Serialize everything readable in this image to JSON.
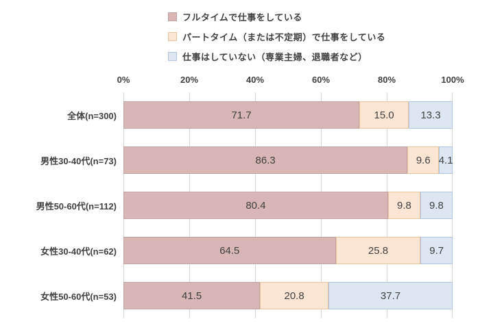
{
  "chart_data": {
    "type": "bar",
    "orientation": "horizontal",
    "stacked": true,
    "value_unit": "%",
    "value_decimals": 1,
    "title": "",
    "categories": [
      "全体(n=300)",
      "男性30-40代(n=73)",
      "男性50-60代(n=112)",
      "女性30-40代(n=62)",
      "女性50-60代(n=53)"
    ],
    "series": [
      {
        "name": "フルタイムで仕事をしている",
        "values": [
          71.7,
          86.3,
          80.4,
          64.5,
          41.5
        ],
        "fill": "#d8b6b5",
        "border": "#bfa2a1"
      },
      {
        "name": "パートタイム（または不定期）で仕事をしている",
        "values": [
          15.0,
          9.6,
          9.8,
          25.8,
          20.8
        ],
        "fill": "#fce5d3",
        "border": "#e9c49c"
      },
      {
        "name": "仕事はしていない（専業主婦、退職者など）",
        "values": [
          13.3,
          4.1,
          9.8,
          9.7,
          37.7
        ],
        "fill": "#dde6f2",
        "border": "#aec4e0"
      }
    ],
    "x_axis": {
      "min": 0,
      "max": 100,
      "ticks": [
        "0%",
        "20%",
        "40%",
        "60%",
        "80%",
        "100%"
      ]
    },
    "grid": true,
    "legend_position": "top",
    "text_color": "#404040",
    "gridline_color": "#d9d9d9",
    "background_color": "#ffffff"
  }
}
